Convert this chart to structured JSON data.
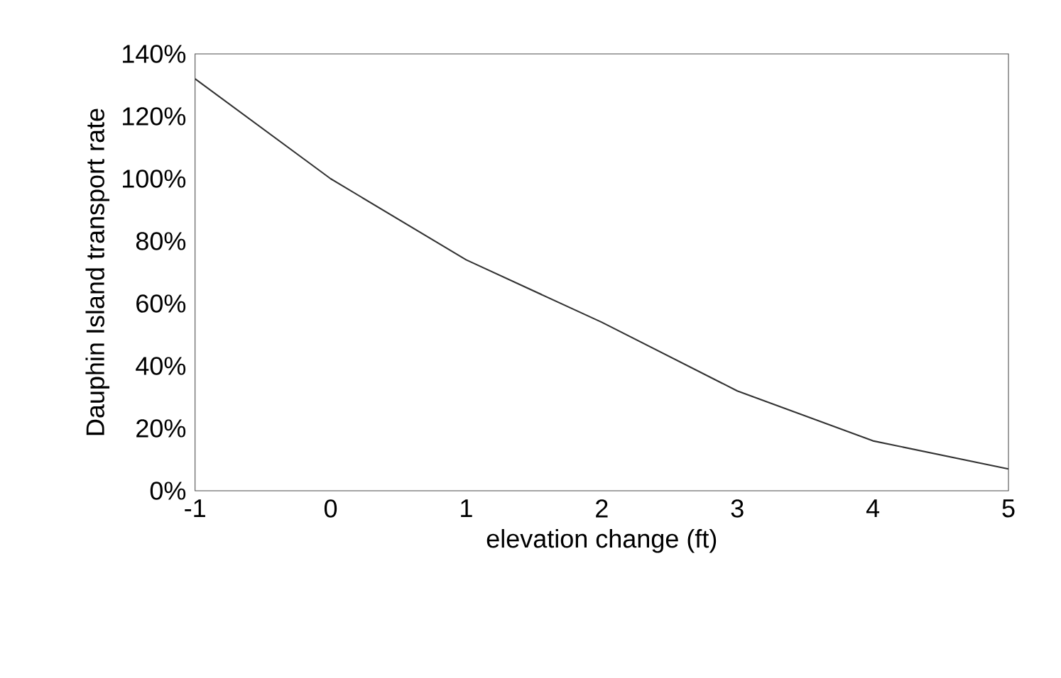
{
  "chart_data": {
    "type": "line",
    "xlabel": "elevation change (ft)",
    "ylabel": "Dauphin Island transport rate",
    "x": [
      -1,
      0,
      1,
      2,
      3,
      4,
      5
    ],
    "series": [
      {
        "color": "#333333",
        "values": [
          132,
          100,
          74,
          54,
          32,
          16,
          7
        ]
      }
    ],
    "xlim": [
      -1,
      5
    ],
    "xticks": [
      -1,
      0,
      1,
      2,
      3,
      4,
      5
    ],
    "ylim": [
      0,
      140
    ],
    "yticks": [
      {
        "value": 0,
        "label": "0%"
      },
      {
        "value": 20,
        "label": "20%"
      },
      {
        "value": 40,
        "label": "40%"
      },
      {
        "value": 60,
        "label": "60%"
      },
      {
        "value": 80,
        "label": "80%"
      },
      {
        "value": 100,
        "label": "100%"
      },
      {
        "value": 120,
        "label": "120%"
      },
      {
        "value": 140,
        "label": "140%"
      }
    ],
    "grid": false,
    "marker": "none",
    "line_style": "solid"
  }
}
